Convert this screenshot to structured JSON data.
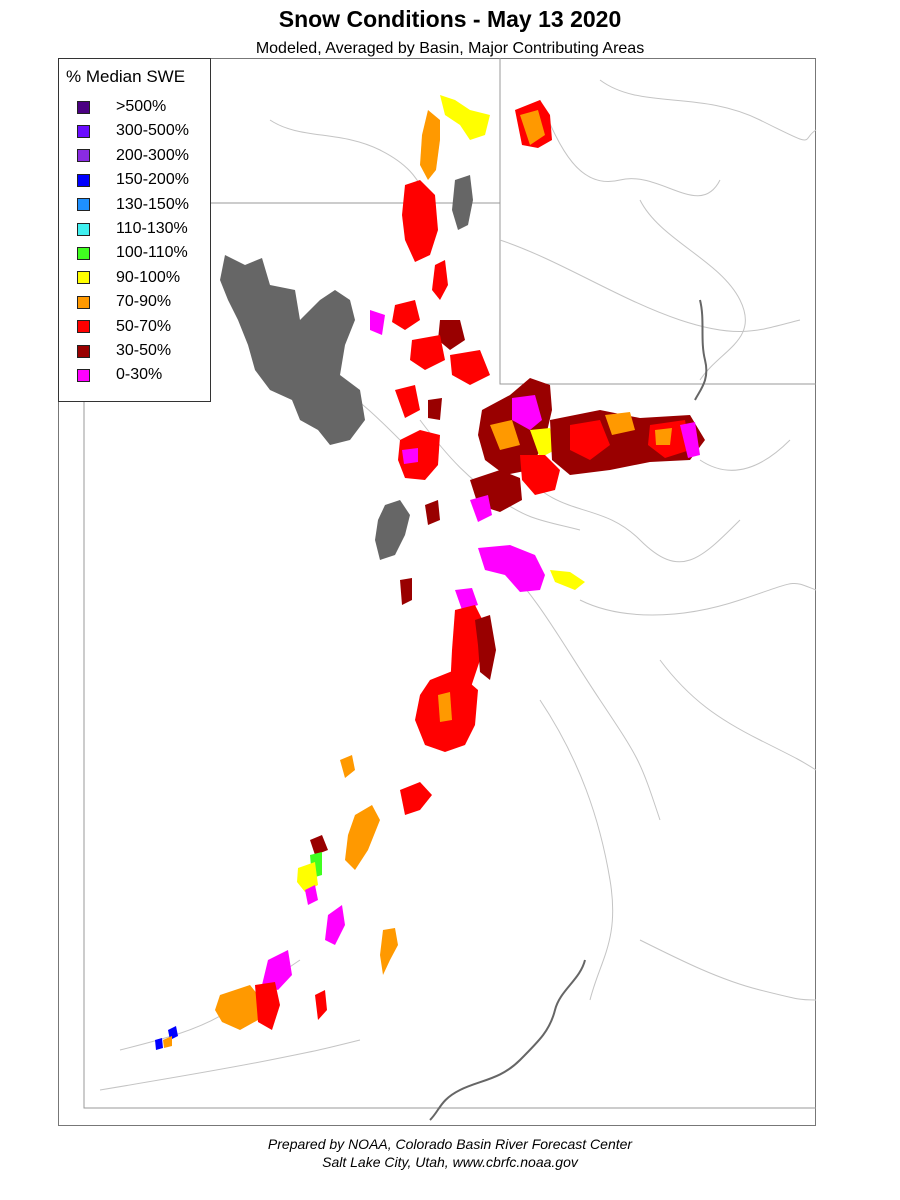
{
  "header": {
    "title": "Snow Conditions - May 13 2020",
    "subtitle": "Modeled, Averaged by Basin, Major Contributing Areas"
  },
  "legend": {
    "title": "% Median SWE",
    "items": [
      {
        "label": ">500%",
        "color": "#4b0082"
      },
      {
        "label": "300-500%",
        "color": "#6a0dff"
      },
      {
        "label": "200-300%",
        "color": "#8a2be2"
      },
      {
        "label": "150-200%",
        "color": "#0000ff"
      },
      {
        "label": "130-150%",
        "color": "#1e90ff"
      },
      {
        "label": "110-130%",
        "color": "#40f0f0"
      },
      {
        "label": "100-110%",
        "color": "#40ff20"
      },
      {
        "label": "90-100%",
        "color": "#ffff00"
      },
      {
        "label": "70-90%",
        "color": "#ff9900"
      },
      {
        "label": "50-70%",
        "color": "#ff0000"
      },
      {
        "label": "30-50%",
        "color": "#990000"
      },
      {
        "label": "0-30%",
        "color": "#ff00ff"
      }
    ]
  },
  "colors": {
    "lake": "#666666",
    "boundary": "#999999",
    "river": "#bbbbbb"
  },
  "footer": {
    "line1": "Prepared by NOAA, Colorado Basin River Forecast Center",
    "line2": "Salt Lake City, Utah, www.cbrfc.noaa.gov"
  }
}
